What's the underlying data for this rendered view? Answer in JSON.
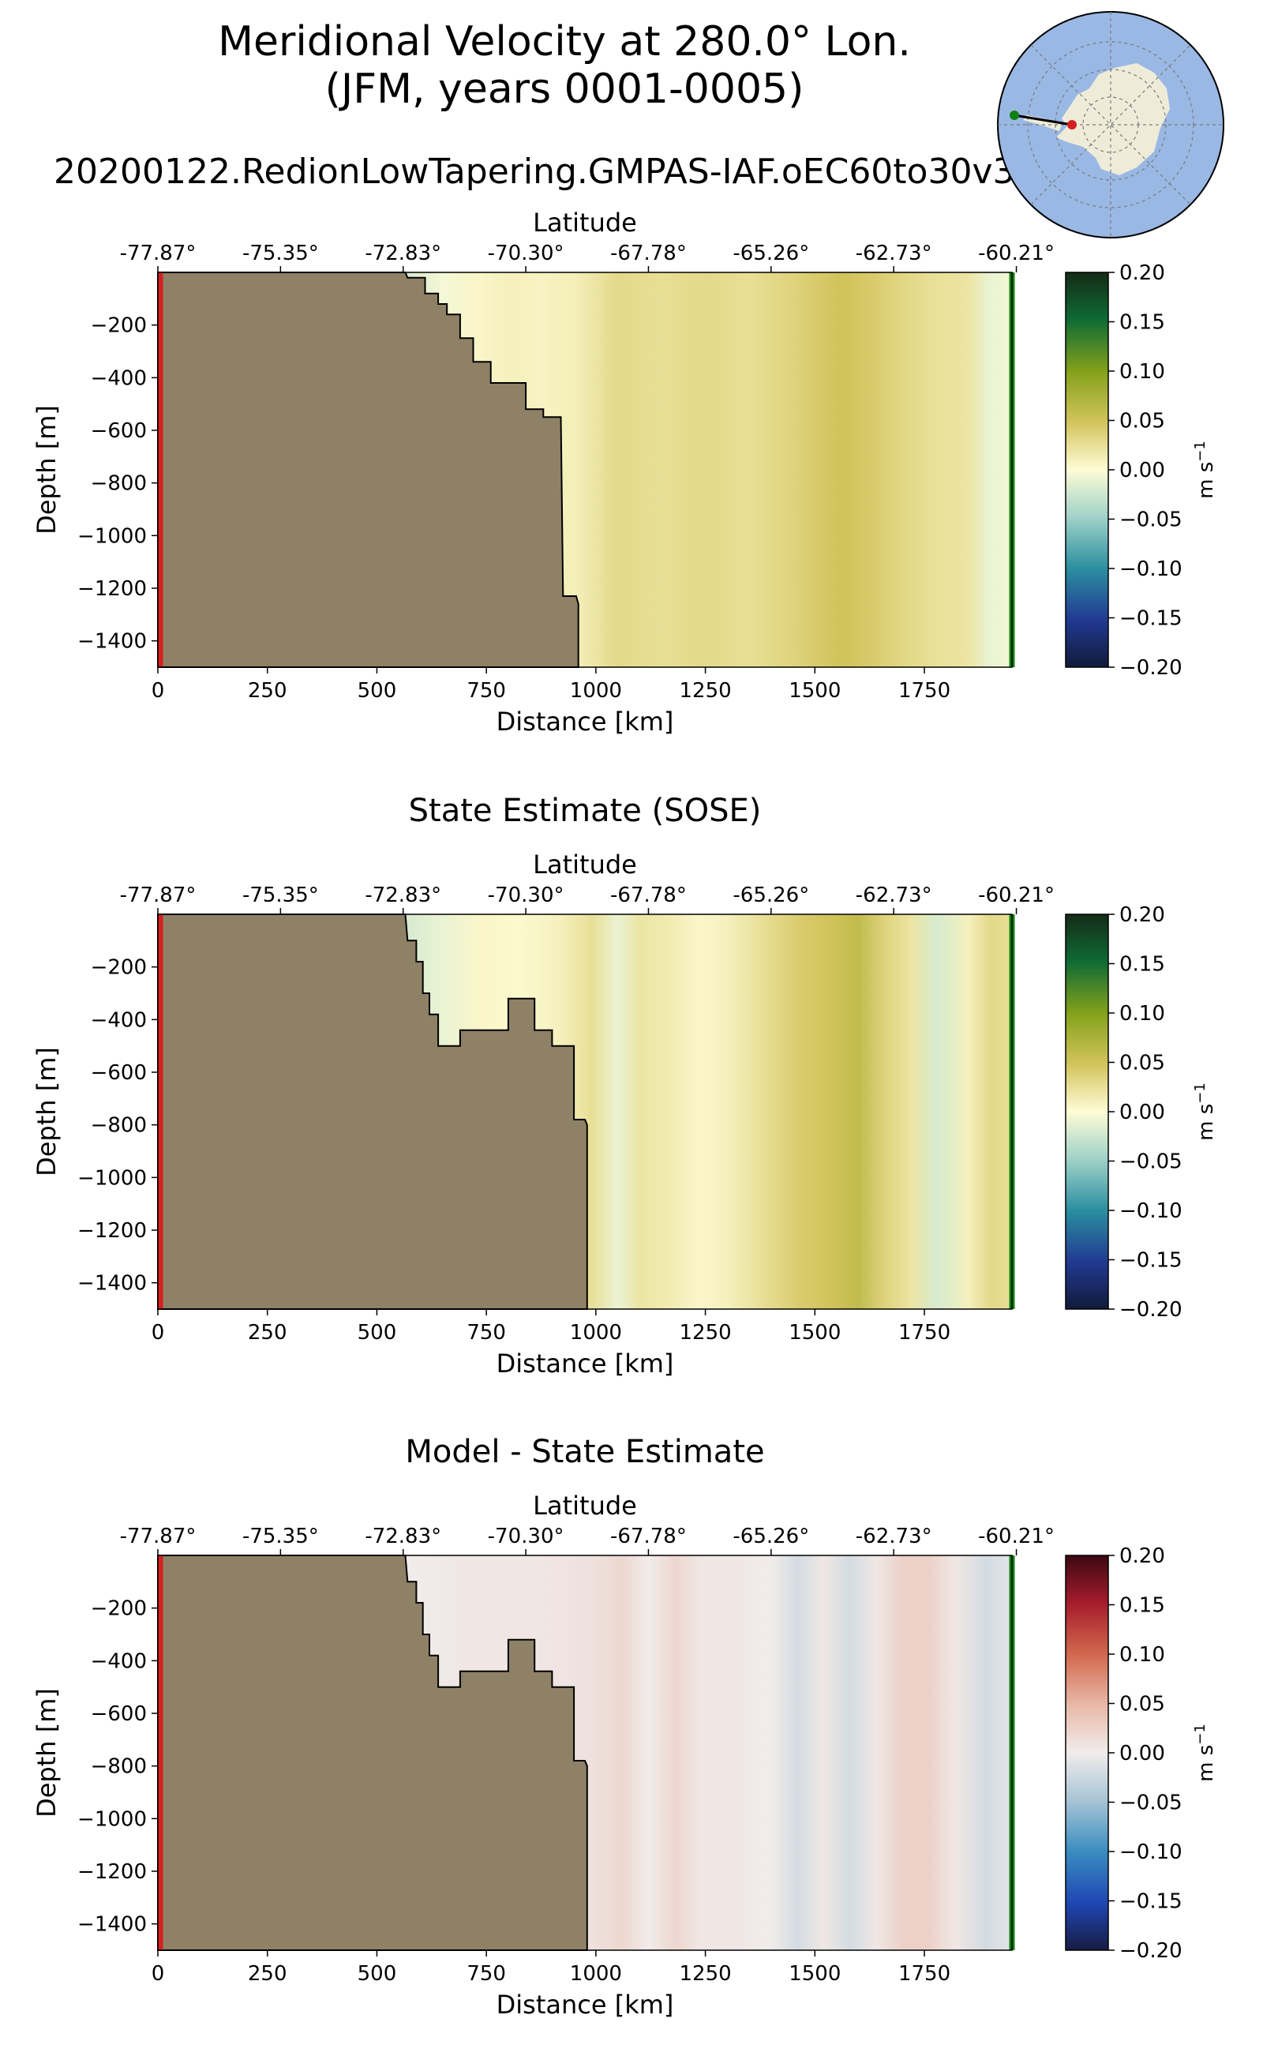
{
  "figure": {
    "title_line1": "Meridional Velocity at 280.0° Lon.",
    "title_line2": "(JFM, years 0001-0005)",
    "run_name": "20200122.RedionLowTapering.GMPAS-IAF.oEC60to30v3"
  },
  "colors": {
    "land": "#8f8166",
    "start_marker": "#d62020",
    "end_marker": "#108010",
    "ocean_map": "#9ab8e4",
    "antarctica": "#eeecd9"
  },
  "chart_data": [
    {
      "type": "heatmap",
      "title": "",
      "xlabel": "Distance [km]",
      "ylabel": "Depth [m]",
      "top_xlabel": "Latitude",
      "xlim": [
        0,
        1950
      ],
      "ylim": [
        -1500,
        0
      ],
      "xticks": [
        0,
        250,
        500,
        750,
        1000,
        1250,
        1500,
        1750
      ],
      "xtick_labels": [
        "0",
        "250",
        "500",
        "750",
        "1000",
        "1250",
        "1500",
        "1750"
      ],
      "yticks": [
        -200,
        -400,
        -600,
        -800,
        -1000,
        -1200,
        -1400
      ],
      "ytick_labels": [
        "−200",
        "−400",
        "−600",
        "−800",
        "−1000",
        "−1200",
        "−1400"
      ],
      "lat_tick_km": [
        0,
        280,
        560,
        840,
        1120,
        1400,
        1680,
        1960
      ],
      "lat_labels": [
        "-77.87°",
        "-75.35°",
        "-72.83°",
        "-70.30°",
        "-67.78°",
        "-65.26°",
        "-62.73°",
        "-60.21°"
      ],
      "colorbar": {
        "cmap": "delta",
        "range": [
          -0.2,
          0.2
        ],
        "ticks": [
          0.2,
          0.15,
          0.1,
          0.05,
          0.0,
          -0.05,
          -0.1,
          -0.15,
          -0.2
        ],
        "tick_labels": [
          "0.20",
          "0.15",
          "0.10",
          "0.05",
          "0.00",
          "−0.05",
          "−0.10",
          "−0.15",
          "−0.20"
        ],
        "label": "m s",
        "label_exp": "−1"
      },
      "bathymetry": [
        [
          0,
          0
        ],
        [
          565,
          0
        ],
        [
          570,
          -20
        ],
        [
          610,
          -20
        ],
        [
          610,
          -80
        ],
        [
          640,
          -80
        ],
        [
          640,
          -120
        ],
        [
          660,
          -120
        ],
        [
          660,
          -160
        ],
        [
          690,
          -160
        ],
        [
          690,
          -250
        ],
        [
          720,
          -250
        ],
        [
          720,
          -340
        ],
        [
          760,
          -340
        ],
        [
          760,
          -420
        ],
        [
          840,
          -420
        ],
        [
          840,
          -520
        ],
        [
          880,
          -520
        ],
        [
          880,
          -550
        ],
        [
          920,
          -550
        ],
        [
          925,
          -1230
        ],
        [
          955,
          -1230
        ],
        [
          960,
          -1260
        ],
        [
          960,
          -1500
        ],
        [
          0,
          -1500
        ]
      ],
      "velocity_profile": {
        "distance_km": [
          570,
          650,
          730,
          800,
          880,
          960,
          1050,
          1150,
          1250,
          1350,
          1450,
          1560,
          1610,
          1680,
          1760,
          1850,
          1900,
          1950
        ],
        "velocity_ms": [
          -0.02,
          -0.005,
          0.005,
          0.01,
          0.008,
          0.012,
          0.03,
          0.025,
          0.03,
          0.025,
          0.035,
          0.05,
          0.045,
          0.035,
          0.025,
          0.02,
          -0.01,
          -0.005
        ]
      }
    },
    {
      "type": "heatmap",
      "title": "State Estimate (SOSE)",
      "xlabel": "Distance [km]",
      "ylabel": "Depth [m]",
      "top_xlabel": "Latitude",
      "xlim": [
        0,
        1950
      ],
      "ylim": [
        -1500,
        0
      ],
      "xticks": [
        0,
        250,
        500,
        750,
        1000,
        1250,
        1500,
        1750
      ],
      "xtick_labels": [
        "0",
        "250",
        "500",
        "750",
        "1000",
        "1250",
        "1500",
        "1750"
      ],
      "yticks": [
        -200,
        -400,
        -600,
        -800,
        -1000,
        -1200,
        -1400
      ],
      "ytick_labels": [
        "−200",
        "−400",
        "−600",
        "−800",
        "−1000",
        "−1200",
        "−1400"
      ],
      "lat_tick_km": [
        0,
        280,
        560,
        840,
        1120,
        1400,
        1680,
        1960
      ],
      "lat_labels": [
        "-77.87°",
        "-75.35°",
        "-72.83°",
        "-70.30°",
        "-67.78°",
        "-65.26°",
        "-62.73°",
        "-60.21°"
      ],
      "colorbar": {
        "cmap": "delta",
        "range": [
          -0.2,
          0.2
        ],
        "ticks": [
          0.2,
          0.15,
          0.1,
          0.05,
          0.0,
          -0.05,
          -0.1,
          -0.15,
          -0.2
        ],
        "tick_labels": [
          "0.20",
          "0.15",
          "0.10",
          "0.05",
          "0.00",
          "−0.05",
          "−0.10",
          "−0.15",
          "−0.20"
        ],
        "label": "m s",
        "label_exp": "−1"
      },
      "bathymetry": [
        [
          0,
          0
        ],
        [
          565,
          0
        ],
        [
          570,
          -100
        ],
        [
          590,
          -100
        ],
        [
          590,
          -180
        ],
        [
          605,
          -180
        ],
        [
          605,
          -300
        ],
        [
          620,
          -300
        ],
        [
          620,
          -380
        ],
        [
          640,
          -380
        ],
        [
          640,
          -500
        ],
        [
          690,
          -500
        ],
        [
          690,
          -440
        ],
        [
          800,
          -440
        ],
        [
          800,
          -320
        ],
        [
          860,
          -320
        ],
        [
          860,
          -440
        ],
        [
          900,
          -440
        ],
        [
          900,
          -500
        ],
        [
          950,
          -500
        ],
        [
          950,
          -780
        ],
        [
          975,
          -780
        ],
        [
          980,
          -800
        ],
        [
          980,
          -1500
        ],
        [
          0,
          -1500
        ]
      ],
      "velocity_profile": {
        "distance_km": [
          570,
          650,
          740,
          830,
          920,
          990,
          1050,
          1100,
          1160,
          1240,
          1300,
          1380,
          1460,
          1540,
          1600,
          1660,
          1720,
          1780,
          1850,
          1900,
          1950
        ],
        "velocity_ms": [
          -0.02,
          -0.01,
          0.005,
          0.003,
          0.01,
          0.025,
          -0.01,
          0.02,
          0.015,
          0.005,
          0.01,
          0.025,
          0.04,
          0.05,
          0.06,
          0.035,
          0.02,
          -0.02,
          0.01,
          0.03,
          0.025
        ]
      }
    },
    {
      "type": "heatmap",
      "title": "Model - State Estimate",
      "xlabel": "Distance [km]",
      "ylabel": "Depth [m]",
      "top_xlabel": "Latitude",
      "xlim": [
        0,
        1950
      ],
      "ylim": [
        -1500,
        0
      ],
      "xticks": [
        0,
        250,
        500,
        750,
        1000,
        1250,
        1500,
        1750
      ],
      "xtick_labels": [
        "0",
        "250",
        "500",
        "750",
        "1000",
        "1250",
        "1500",
        "1750"
      ],
      "yticks": [
        -200,
        -400,
        -600,
        -800,
        -1000,
        -1200,
        -1400
      ],
      "ytick_labels": [
        "−200",
        "−400",
        "−600",
        "−800",
        "−1000",
        "−1200",
        "−1400"
      ],
      "lat_tick_km": [
        0,
        280,
        560,
        840,
        1120,
        1400,
        1680,
        1960
      ],
      "lat_labels": [
        "-77.87°",
        "-75.35°",
        "-72.83°",
        "-70.30°",
        "-67.78°",
        "-65.26°",
        "-62.73°",
        "-60.21°"
      ],
      "colorbar": {
        "cmap": "balance",
        "range": [
          -0.2,
          0.2
        ],
        "ticks": [
          0.2,
          0.15,
          0.1,
          0.05,
          0.0,
          -0.05,
          -0.1,
          -0.15,
          -0.2
        ],
        "tick_labels": [
          "0.20",
          "0.15",
          "0.10",
          "0.05",
          "0.00",
          "−0.05",
          "−0.10",
          "−0.15",
          "−0.20"
        ],
        "label": "m s",
        "label_exp": "−1"
      },
      "bathymetry": [
        [
          0,
          0
        ],
        [
          565,
          0
        ],
        [
          570,
          -100
        ],
        [
          590,
          -100
        ],
        [
          590,
          -180
        ],
        [
          605,
          -180
        ],
        [
          605,
          -300
        ],
        [
          620,
          -300
        ],
        [
          620,
          -380
        ],
        [
          640,
          -380
        ],
        [
          640,
          -500
        ],
        [
          690,
          -500
        ],
        [
          690,
          -440
        ],
        [
          800,
          -440
        ],
        [
          800,
          -320
        ],
        [
          860,
          -320
        ],
        [
          860,
          -440
        ],
        [
          900,
          -440
        ],
        [
          900,
          -500
        ],
        [
          950,
          -500
        ],
        [
          950,
          -780
        ],
        [
          975,
          -780
        ],
        [
          980,
          -800
        ],
        [
          980,
          -1500
        ],
        [
          0,
          -1500
        ]
      ],
      "velocity_profile": {
        "distance_km": [
          570,
          700,
          850,
          990,
          1060,
          1120,
          1180,
          1240,
          1320,
          1400,
          1460,
          1520,
          1580,
          1640,
          1700,
          1760,
          1820,
          1890,
          1950
        ],
        "velocity_ms": [
          0.0,
          0.005,
          0.005,
          0.01,
          0.02,
          0.0,
          0.02,
          0.005,
          0.005,
          0.0,
          -0.02,
          0.005,
          -0.02,
          0.005,
          0.025,
          0.025,
          0.005,
          -0.02,
          -0.01
        ]
      }
    }
  ]
}
